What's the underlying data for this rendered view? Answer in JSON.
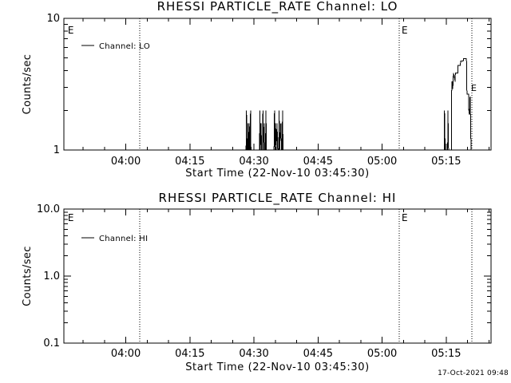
{
  "page": {
    "background": "#ffffff",
    "text_color": "#000000",
    "timestamp": "17-Oct-2021 09:48"
  },
  "chart_data": [
    {
      "type": "line",
      "title": "RHESSI PARTICLE_RATE Channel: LO",
      "xlabel": "Start Time (22-Nov-10 03:45:30)",
      "ylabel": "Counts/sec",
      "legend": "Channel: LO",
      "legend_position": "upper-left-inside",
      "yscale": "log",
      "ylim": [
        1,
        10
      ],
      "yticks": [
        {
          "v": 1,
          "label": "1"
        },
        {
          "v": 10,
          "label": "10"
        }
      ],
      "x_unit": "minutes since 22-Nov-10 03:45:30",
      "xlim_minutes": [
        0,
        100
      ],
      "xticks_minutes": [
        {
          "t": 14.5,
          "label": "04:00"
        },
        {
          "t": 29.5,
          "label": "04:15"
        },
        {
          "t": 44.5,
          "label": "04:30"
        },
        {
          "t": 59.5,
          "label": "04:45"
        },
        {
          "t": 74.5,
          "label": "05:00"
        },
        {
          "t": 89.5,
          "label": "05:15"
        }
      ],
      "x_minor_tick_every_minutes": 5,
      "grid": false,
      "event_lines": [
        {
          "t": 0.35,
          "label": "E",
          "line": false
        },
        {
          "t": 17.75,
          "label": "",
          "line": true
        },
        {
          "t": 78.5,
          "label": "E",
          "line": true
        },
        {
          "t": 95.5,
          "label": "",
          "line": true
        }
      ],
      "annotations": [
        {
          "t": 95.15,
          "v": 2.8,
          "label": "E"
        }
      ],
      "series": [
        {
          "name": "Channel: LO",
          "points": [
            [
              42.65,
              1
            ],
            [
              42.75,
              2
            ],
            [
              42.85,
              1
            ],
            [
              43.0,
              1
            ],
            [
              43.1,
              1.6
            ],
            [
              43.2,
              1
            ],
            [
              43.3,
              1
            ],
            [
              43.4,
              1.6
            ],
            [
              43.5,
              1
            ],
            [
              43.6,
              1
            ],
            [
              43.7,
              2
            ],
            [
              43.8,
              1
            ],
            null,
            [
              45.8,
              1
            ],
            [
              45.9,
              2
            ],
            [
              46.0,
              1
            ],
            [
              46.15,
              1.6
            ],
            [
              46.3,
              1
            ],
            [
              46.5,
              1
            ],
            [
              46.6,
              2
            ],
            [
              46.7,
              1
            ],
            [
              46.9,
              1.6
            ],
            [
              47.0,
              1
            ],
            [
              47.2,
              1
            ],
            [
              47.3,
              2
            ],
            [
              47.4,
              1
            ],
            null,
            [
              49.2,
              1
            ],
            [
              49.3,
              2
            ],
            [
              49.4,
              1
            ],
            [
              49.55,
              1.6
            ],
            [
              49.7,
              1
            ],
            [
              49.9,
              1.6
            ],
            [
              50.05,
              1
            ],
            [
              50.3,
              1
            ],
            [
              50.4,
              2
            ],
            [
              50.5,
              1
            ],
            [
              50.8,
              1.6
            ],
            [
              50.95,
              1
            ],
            [
              51.1,
              1
            ],
            [
              51.2,
              2
            ],
            [
              51.3,
              1
            ],
            null,
            [
              89.05,
              1
            ],
            [
              89.1,
              2
            ],
            [
              89.25,
              1
            ],
            [
              89.85,
              1
            ],
            [
              89.9,
              2
            ],
            [
              90.05,
              1
            ],
            [
              90.75,
              1
            ],
            [
              90.8,
              3.3
            ],
            [
              91.0,
              3.3
            ],
            [
              91.05,
              2.9
            ],
            [
              91.2,
              3.85
            ],
            [
              91.6,
              3.3
            ],
            [
              91.65,
              3.85
            ],
            [
              92.2,
              3.85
            ],
            [
              92.25,
              4.4
            ],
            [
              92.8,
              4.4
            ],
            [
              92.9,
              4.75
            ],
            [
              93.5,
              4.75
            ],
            [
              93.55,
              4.95
            ],
            [
              94.25,
              4.95
            ],
            [
              94.3,
              4.0
            ],
            [
              94.35,
              2.65
            ],
            [
              94.75,
              2.65
            ],
            [
              94.8,
              2.0
            ],
            [
              94.95,
              1.85
            ],
            [
              95.1,
              2.55
            ],
            [
              95.25,
              1.5
            ],
            [
              95.3,
              1
            ]
          ]
        }
      ]
    },
    {
      "type": "line",
      "title": "RHESSI PARTICLE_RATE Channel: HI",
      "xlabel": "Start Time (22-Nov-10 03:45:30)",
      "ylabel": "Counts/sec",
      "legend": "Channel: HI",
      "legend_position": "upper-left-inside",
      "yscale": "log",
      "ylim": [
        0.1,
        10
      ],
      "yticks": [
        {
          "v": 0.1,
          "label": "0.1"
        },
        {
          "v": 1,
          "label": "1.0"
        },
        {
          "v": 10,
          "label": "10.0"
        }
      ],
      "x_unit": "minutes since 22-Nov-10 03:45:30",
      "xlim_minutes": [
        0,
        100
      ],
      "xticks_minutes": [
        {
          "t": 14.5,
          "label": "04:00"
        },
        {
          "t": 29.5,
          "label": "04:15"
        },
        {
          "t": 44.5,
          "label": "04:30"
        },
        {
          "t": 59.5,
          "label": "04:45"
        },
        {
          "t": 74.5,
          "label": "05:00"
        },
        {
          "t": 89.5,
          "label": "05:15"
        }
      ],
      "x_minor_tick_every_minutes": 5,
      "grid": false,
      "event_lines": [
        {
          "t": 0.35,
          "label": "E",
          "line": false
        },
        {
          "t": 17.75,
          "label": "",
          "line": true
        },
        {
          "t": 78.5,
          "label": "E",
          "line": true
        },
        {
          "t": 95.5,
          "label": "",
          "line": true
        }
      ],
      "annotations": [],
      "series": [
        {
          "name": "Channel: HI",
          "points": []
        }
      ]
    }
  ]
}
